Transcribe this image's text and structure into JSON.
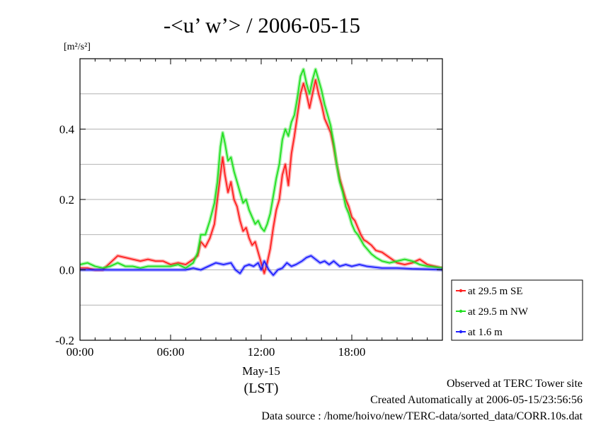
{
  "chart_data": {
    "type": "line",
    "title": "-<u’ w’> / 2006-05-15",
    "ylabel_unit": "[m²/s²]",
    "xlabel": "(LST)",
    "date_label": "May-15",
    "x_unit": "hours (LST)",
    "xlim": [
      0,
      24
    ],
    "ylim": [
      -0.2,
      0.6
    ],
    "x_ticks": [
      0,
      6,
      12,
      18
    ],
    "x_tick_labels": [
      "00:00",
      "06:00",
      "12:00",
      "18:00"
    ],
    "y_ticks": [
      -0.2,
      0.0,
      0.2,
      0.4
    ],
    "y_tick_labels": [
      "-0.2",
      "0.0",
      "0.2",
      "0.4"
    ],
    "grid": true,
    "legend_position": "right-bottom-outside",
    "series": [
      {
        "name": "at 29.5 m SE",
        "color": "#ff2020",
        "points": [
          [
            0.0,
            0.005
          ],
          [
            0.5,
            0.005
          ],
          [
            1.0,
            0.0
          ],
          [
            1.5,
            0.0
          ],
          [
            2.0,
            0.02
          ],
          [
            2.5,
            0.04
          ],
          [
            3.0,
            0.035
          ],
          [
            3.5,
            0.03
          ],
          [
            4.0,
            0.025
          ],
          [
            4.5,
            0.03
          ],
          [
            5.0,
            0.025
          ],
          [
            5.5,
            0.025
          ],
          [
            6.0,
            0.015
          ],
          [
            6.5,
            0.02
          ],
          [
            7.0,
            0.015
          ],
          [
            7.5,
            0.03
          ],
          [
            7.8,
            0.04
          ],
          [
            8.0,
            0.08
          ],
          [
            8.3,
            0.065
          ],
          [
            8.6,
            0.09
          ],
          [
            8.9,
            0.13
          ],
          [
            9.1,
            0.2
          ],
          [
            9.3,
            0.27
          ],
          [
            9.45,
            0.32
          ],
          [
            9.6,
            0.27
          ],
          [
            9.8,
            0.22
          ],
          [
            10.0,
            0.25
          ],
          [
            10.2,
            0.2
          ],
          [
            10.4,
            0.18
          ],
          [
            10.6,
            0.14
          ],
          [
            10.8,
            0.11
          ],
          [
            11.0,
            0.12
          ],
          [
            11.2,
            0.09
          ],
          [
            11.4,
            0.07
          ],
          [
            11.6,
            0.08
          ],
          [
            11.8,
            0.05
          ],
          [
            12.0,
            0.02
          ],
          [
            12.2,
            -0.01
          ],
          [
            12.4,
            0.02
          ],
          [
            12.6,
            0.06
          ],
          [
            12.8,
            0.12
          ],
          [
            13.0,
            0.17
          ],
          [
            13.2,
            0.2
          ],
          [
            13.4,
            0.27
          ],
          [
            13.6,
            0.3
          ],
          [
            13.8,
            0.24
          ],
          [
            14.0,
            0.33
          ],
          [
            14.2,
            0.38
          ],
          [
            14.4,
            0.44
          ],
          [
            14.6,
            0.5
          ],
          [
            14.8,
            0.53
          ],
          [
            15.0,
            0.5
          ],
          [
            15.2,
            0.46
          ],
          [
            15.4,
            0.5
          ],
          [
            15.6,
            0.54
          ],
          [
            15.8,
            0.5
          ],
          [
            16.0,
            0.47
          ],
          [
            16.2,
            0.43
          ],
          [
            16.4,
            0.41
          ],
          [
            16.6,
            0.39
          ],
          [
            16.8,
            0.35
          ],
          [
            17.0,
            0.3
          ],
          [
            17.2,
            0.26
          ],
          [
            17.4,
            0.23
          ],
          [
            17.6,
            0.2
          ],
          [
            17.8,
            0.18
          ],
          [
            18.0,
            0.15
          ],
          [
            18.2,
            0.14
          ],
          [
            18.4,
            0.12
          ],
          [
            18.6,
            0.1
          ],
          [
            18.8,
            0.085
          ],
          [
            19.0,
            0.08
          ],
          [
            19.3,
            0.07
          ],
          [
            19.6,
            0.055
          ],
          [
            20.0,
            0.05
          ],
          [
            20.5,
            0.035
          ],
          [
            21.0,
            0.02
          ],
          [
            21.5,
            0.015
          ],
          [
            22.0,
            0.02
          ],
          [
            22.5,
            0.03
          ],
          [
            23.0,
            0.015
          ],
          [
            23.5,
            0.01
          ],
          [
            24.0,
            0.005
          ]
        ]
      },
      {
        "name": "at 29.5 m NW",
        "color": "#20e020",
        "points": [
          [
            0.0,
            0.015
          ],
          [
            0.5,
            0.02
          ],
          [
            1.0,
            0.01
          ],
          [
            1.5,
            0.005
          ],
          [
            2.0,
            0.01
          ],
          [
            2.5,
            0.02
          ],
          [
            3.0,
            0.01
          ],
          [
            3.5,
            0.01
          ],
          [
            4.0,
            0.005
          ],
          [
            4.5,
            0.01
          ],
          [
            5.0,
            0.01
          ],
          [
            5.5,
            0.01
          ],
          [
            6.0,
            0.01
          ],
          [
            6.5,
            0.015
          ],
          [
            7.0,
            0.005
          ],
          [
            7.5,
            0.02
          ],
          [
            7.8,
            0.05
          ],
          [
            8.0,
            0.1
          ],
          [
            8.3,
            0.1
          ],
          [
            8.6,
            0.14
          ],
          [
            8.9,
            0.19
          ],
          [
            9.1,
            0.25
          ],
          [
            9.3,
            0.35
          ],
          [
            9.45,
            0.39
          ],
          [
            9.6,
            0.36
          ],
          [
            9.8,
            0.31
          ],
          [
            10.0,
            0.32
          ],
          [
            10.2,
            0.28
          ],
          [
            10.4,
            0.25
          ],
          [
            10.6,
            0.22
          ],
          [
            10.8,
            0.19
          ],
          [
            11.0,
            0.2
          ],
          [
            11.2,
            0.17
          ],
          [
            11.4,
            0.15
          ],
          [
            11.6,
            0.13
          ],
          [
            11.8,
            0.14
          ],
          [
            12.0,
            0.12
          ],
          [
            12.2,
            0.11
          ],
          [
            12.4,
            0.13
          ],
          [
            12.6,
            0.16
          ],
          [
            12.8,
            0.21
          ],
          [
            13.0,
            0.26
          ],
          [
            13.2,
            0.3
          ],
          [
            13.4,
            0.37
          ],
          [
            13.6,
            0.4
          ],
          [
            13.8,
            0.38
          ],
          [
            14.0,
            0.42
          ],
          [
            14.2,
            0.44
          ],
          [
            14.4,
            0.49
          ],
          [
            14.6,
            0.55
          ],
          [
            14.8,
            0.57
          ],
          [
            15.0,
            0.53
          ],
          [
            15.2,
            0.5
          ],
          [
            15.4,
            0.54
          ],
          [
            15.6,
            0.57
          ],
          [
            15.8,
            0.54
          ],
          [
            16.0,
            0.51
          ],
          [
            16.2,
            0.47
          ],
          [
            16.4,
            0.44
          ],
          [
            16.6,
            0.41
          ],
          [
            16.8,
            0.36
          ],
          [
            17.0,
            0.3
          ],
          [
            17.2,
            0.25
          ],
          [
            17.4,
            0.22
          ],
          [
            17.6,
            0.18
          ],
          [
            17.8,
            0.16
          ],
          [
            18.0,
            0.13
          ],
          [
            18.2,
            0.11
          ],
          [
            18.4,
            0.1
          ],
          [
            18.6,
            0.085
          ],
          [
            18.8,
            0.07
          ],
          [
            19.0,
            0.06
          ],
          [
            19.3,
            0.045
          ],
          [
            19.6,
            0.035
          ],
          [
            20.0,
            0.025
          ],
          [
            20.5,
            0.02
          ],
          [
            21.0,
            0.025
          ],
          [
            21.5,
            0.03
          ],
          [
            22.0,
            0.025
          ],
          [
            22.5,
            0.015
          ],
          [
            23.0,
            0.01
          ],
          [
            23.5,
            0.008
          ],
          [
            24.0,
            0.005
          ]
        ]
      },
      {
        "name": "at 1.6 m",
        "color": "#2020ff",
        "points": [
          [
            0.0,
            0.0
          ],
          [
            1.0,
            0.0
          ],
          [
            2.0,
            0.0
          ],
          [
            3.0,
            0.0
          ],
          [
            4.0,
            0.0
          ],
          [
            5.0,
            0.0
          ],
          [
            6.0,
            0.0
          ],
          [
            7.0,
            0.0
          ],
          [
            7.5,
            0.005
          ],
          [
            8.0,
            0.0
          ],
          [
            8.5,
            0.01
          ],
          [
            9.0,
            0.02
          ],
          [
            9.5,
            0.015
          ],
          [
            10.0,
            0.02
          ],
          [
            10.3,
            0.0
          ],
          [
            10.6,
            -0.01
          ],
          [
            10.9,
            0.01
          ],
          [
            11.2,
            0.015
          ],
          [
            11.5,
            0.01
          ],
          [
            11.8,
            0.02
          ],
          [
            12.0,
            0.0
          ],
          [
            12.2,
            0.025
          ],
          [
            12.5,
            0.0
          ],
          [
            12.8,
            -0.015
          ],
          [
            13.1,
            0.0
          ],
          [
            13.4,
            0.005
          ],
          [
            13.7,
            0.02
          ],
          [
            14.0,
            0.01
          ],
          [
            14.3,
            0.015
          ],
          [
            14.7,
            0.025
          ],
          [
            15.0,
            0.035
          ],
          [
            15.3,
            0.04
          ],
          [
            15.6,
            0.03
          ],
          [
            15.9,
            0.02
          ],
          [
            16.2,
            0.025
          ],
          [
            16.5,
            0.015
          ],
          [
            16.8,
            0.025
          ],
          [
            17.2,
            0.01
          ],
          [
            17.6,
            0.015
          ],
          [
            18.0,
            0.01
          ],
          [
            18.5,
            0.015
          ],
          [
            19.0,
            0.01
          ],
          [
            20.0,
            0.005
          ],
          [
            21.0,
            0.005
          ],
          [
            22.0,
            0.003
          ],
          [
            23.0,
            0.002
          ],
          [
            24.0,
            0.0
          ]
        ]
      }
    ]
  },
  "footer": {
    "line1": "Observed at TERC Tower site",
    "line2": "Created Automatically at 2006-05-15/23:56:56",
    "line3": "Data source : /home/hoivo/new/TERC-data/sorted_data/CORR.10s.dat"
  }
}
